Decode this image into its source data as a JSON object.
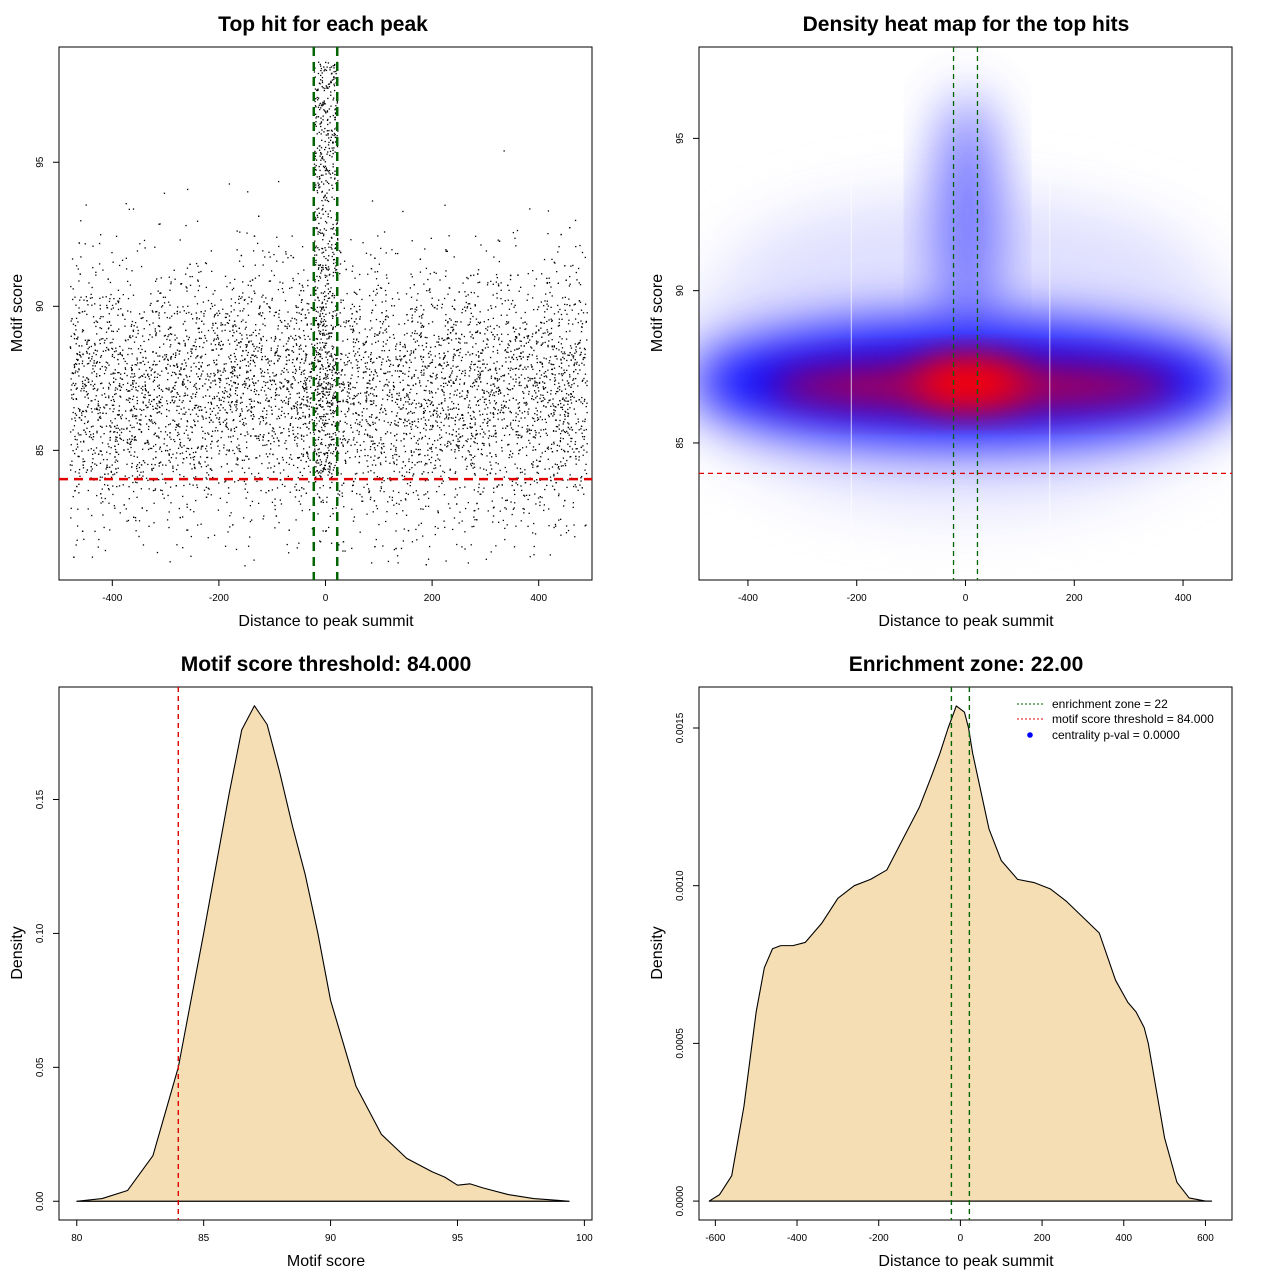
{
  "chart_data": [
    {
      "type": "scatter",
      "title": "Top hit for each peak",
      "xlabel": "Distance to peak summit",
      "ylabel": "Motif score",
      "xlim": [
        -500,
        500
      ],
      "ylim": [
        80.5,
        99
      ],
      "xticks": [
        -400,
        -200,
        0,
        200,
        400
      ],
      "yticks": [
        85,
        90,
        95
      ],
      "n_points": 6000,
      "x_range": [
        -480,
        490
      ],
      "score_mode": 87,
      "score_sd": 2.2,
      "central_zone_max_score": 98.5,
      "hline": {
        "value": 84,
        "color": "#e00000",
        "style": "dashed"
      },
      "vlines": [
        {
          "value": -22,
          "color": "#006400",
          "style": "dashed"
        },
        {
          "value": 22,
          "color": "#006400",
          "style": "dashed"
        }
      ]
    },
    {
      "type": "heatmap",
      "title": "Density heat map for the top hits",
      "xlabel": "Distance to peak summit",
      "ylabel": "Motif score",
      "xlim": [
        -490,
        490
      ],
      "ylim": [
        80.5,
        98
      ],
      "xticks": [
        -400,
        -200,
        0,
        200,
        400
      ],
      "yticks": [
        85,
        90,
        95
      ],
      "colors": [
        "#ffffff",
        "#0000ff",
        "#ff0000"
      ],
      "hotspot": {
        "x": 0,
        "y": 87
      },
      "hline": {
        "value": 84,
        "color": "#e00000",
        "style": "dashed"
      },
      "vlines": [
        {
          "value": -22,
          "color": "#006400",
          "style": "dashed"
        },
        {
          "value": 22,
          "color": "#006400",
          "style": "dashed"
        }
      ]
    },
    {
      "type": "area",
      "title": "Motif score threshold: 84.000",
      "xlabel": "Motif score",
      "ylabel": "Density",
      "xlim": [
        79.3,
        100.3
      ],
      "ylim": [
        -0.007,
        0.192
      ],
      "xticks": [
        80,
        85,
        90,
        95,
        100
      ],
      "yticks": [
        0.0,
        0.05,
        0.1,
        0.15
      ],
      "ytick_labels": [
        "0.00",
        "0.05",
        "0.10",
        "0.15"
      ],
      "fill": "#f5deb3",
      "x": [
        80,
        81,
        82,
        83,
        84,
        85,
        86,
        86.5,
        87,
        87.5,
        88,
        88.5,
        89,
        89.5,
        90,
        91,
        92,
        93,
        94,
        94.5,
        95,
        95.5,
        96,
        97,
        98,
        99,
        99.4
      ],
      "y": [
        0,
        0.001,
        0.004,
        0.017,
        0.05,
        0.1,
        0.152,
        0.176,
        0.185,
        0.178,
        0.16,
        0.14,
        0.122,
        0.1,
        0.075,
        0.043,
        0.025,
        0.016,
        0.011,
        0.009,
        0.006,
        0.0065,
        0.005,
        0.0025,
        0.001,
        0.0003,
        0
      ],
      "vlines": [
        {
          "value": 84,
          "color": "#e00000",
          "style": "dashed"
        }
      ]
    },
    {
      "type": "area",
      "title": "Enrichment zone: 22.00",
      "xlabel": "Distance to peak summit",
      "ylabel": "Density",
      "xlim": [
        -640,
        665
      ],
      "ylim": [
        -6e-05,
        0.00163
      ],
      "xticks": [
        -600,
        -400,
        -200,
        0,
        200,
        400,
        600
      ],
      "yticks": [
        0,
        0.0005,
        0.001,
        0.0015
      ],
      "ytick_labels": [
        "0.0000",
        "0.0005",
        "0.0010",
        "0.0015"
      ],
      "fill": "#f5deb3",
      "x": [
        -615,
        -590,
        -560,
        -530,
        -500,
        -480,
        -460,
        -440,
        -410,
        -380,
        -340,
        -300,
        -260,
        -220,
        -180,
        -140,
        -100,
        -70,
        -50,
        -30,
        -10,
        0,
        10,
        20,
        30,
        50,
        70,
        100,
        140,
        180,
        220,
        260,
        300,
        340,
        380,
        410,
        430,
        450,
        460,
        480,
        500,
        530,
        560,
        600,
        615
      ],
      "y": [
        0,
        2e-05,
        8e-05,
        0.0003,
        0.0006,
        0.00074,
        0.0008,
        0.00081,
        0.00081,
        0.00082,
        0.00088,
        0.00096,
        0.001,
        0.00102,
        0.00105,
        0.00115,
        0.00125,
        0.00135,
        0.00142,
        0.0015,
        0.00157,
        0.00156,
        0.00155,
        0.0015,
        0.00142,
        0.0013,
        0.00118,
        0.00108,
        0.00102,
        0.00101,
        0.00099,
        0.00095,
        0.0009,
        0.00085,
        0.0007,
        0.00063,
        0.0006,
        0.00055,
        0.0005,
        0.00035,
        0.0002,
        6e-05,
        1e-05,
        0,
        0
      ],
      "vlines": [
        {
          "value": -22,
          "color": "#006400",
          "style": "dashed"
        },
        {
          "value": 22,
          "color": "#006400",
          "style": "dashed"
        }
      ],
      "legend": {
        "placement": "top-right",
        "entries": [
          {
            "label": "enrichment zone = 22",
            "color": "#006400",
            "marker": "dotted-line"
          },
          {
            "label": "motif score threshold = 84.000",
            "color": "#e00000",
            "marker": "dotted-line"
          },
          {
            "label": "centrality p-val = 0.0000",
            "color": "#0000ff",
            "marker": "dot"
          }
        ]
      }
    }
  ]
}
